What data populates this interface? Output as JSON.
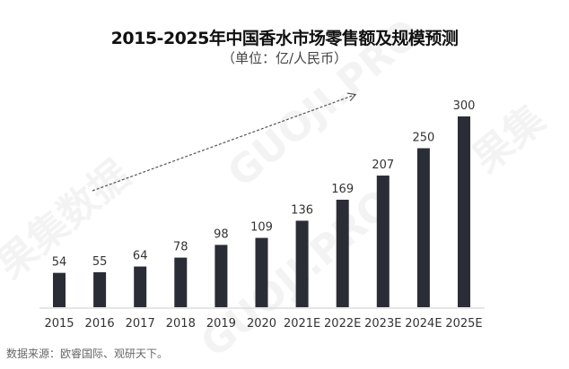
{
  "chart_data": {
    "type": "bar",
    "title": "2015-2025年中国香水市场零售额及规模预测",
    "subtitle": "（单位：亿/人民币）",
    "categories": [
      "2015",
      "2016",
      "2017",
      "2018",
      "2019",
      "2020",
      "2021E",
      "2022E",
      "2023E",
      "2024E",
      "2025E"
    ],
    "values": [
      54,
      55,
      64,
      78,
      98,
      109,
      136,
      169,
      207,
      250,
      300
    ],
    "xlabel": "",
    "ylabel": "",
    "ylim": [
      0,
      300
    ],
    "grid": false,
    "bar_color": "#2b2d36",
    "annotation": "dashed upward trend arrow"
  },
  "source": "数据来源：欧睿国际、观研天下。",
  "watermark": [
    "果集数据",
    "GUOJI.PRO"
  ]
}
